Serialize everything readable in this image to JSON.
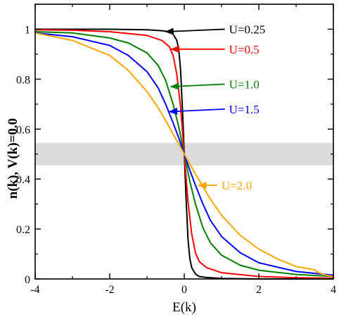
{
  "chart_data": {
    "type": "line",
    "title": "",
    "xlabel": "E(k)",
    "ylabel": "n(k),  V(k)=0.0",
    "xlim": [
      -4,
      4
    ],
    "ylim": [
      0,
      1.1
    ],
    "xticks": [
      -4,
      -2,
      0,
      2,
      4
    ],
    "xtick_labels": [
      "-4",
      "-2",
      "0",
      "2",
      "4"
    ],
    "yticks": [
      0,
      0.2,
      0.4,
      0.6,
      0.8,
      1
    ],
    "ytick_labels": [
      "0",
      "0.2",
      "0.4",
      "0.6",
      "0.8",
      "1"
    ],
    "grid": false,
    "shaded_band": {
      "y0": 0.455,
      "y1": 0.545,
      "color": "#dcdcdc"
    },
    "series": [
      {
        "name": "U=0.25",
        "color": "#000000",
        "x": [
          -4,
          -3,
          -2,
          -1,
          -0.6,
          -0.4,
          -0.3,
          -0.2,
          -0.15,
          -0.1,
          -0.05,
          0,
          0.05,
          0.1,
          0.15,
          0.2,
          0.3,
          0.4,
          0.6,
          1,
          2,
          3,
          4
        ],
        "y": [
          1.0,
          1.0,
          1.0,
          0.998,
          0.994,
          0.99,
          0.98,
          0.955,
          0.92,
          0.84,
          0.68,
          0.5,
          0.32,
          0.16,
          0.08,
          0.045,
          0.02,
          0.01,
          0.006,
          0.002,
          0.0,
          0.0,
          0.0
        ]
      },
      {
        "name": "U=0.5",
        "color": "#ff0000",
        "x": [
          -4,
          -3,
          -2,
          -1,
          -0.6,
          -0.4,
          -0.3,
          -0.2,
          -0.1,
          0,
          0.1,
          0.2,
          0.3,
          0.4,
          0.6,
          1,
          2,
          3,
          4
        ],
        "y": [
          0.998,
          0.996,
          0.99,
          0.975,
          0.955,
          0.93,
          0.895,
          0.82,
          0.69,
          0.5,
          0.31,
          0.18,
          0.105,
          0.07,
          0.045,
          0.025,
          0.01,
          0.005,
          0.003
        ]
      },
      {
        "name": "U=1.0",
        "color": "#008000",
        "x": [
          -4,
          -3,
          -2,
          -1.5,
          -1,
          -0.7,
          -0.5,
          -0.3,
          -0.15,
          0,
          0.15,
          0.3,
          0.5,
          0.7,
          1,
          1.5,
          2,
          3,
          4
        ],
        "y": [
          0.99,
          0.985,
          0.965,
          0.945,
          0.905,
          0.855,
          0.795,
          0.7,
          0.61,
          0.5,
          0.39,
          0.3,
          0.205,
          0.145,
          0.095,
          0.055,
          0.035,
          0.018,
          0.01
        ]
      },
      {
        "name": "U=1.5",
        "color": "#0000ff",
        "x": [
          -4,
          -3,
          -2,
          -1.5,
          -1,
          -0.7,
          -0.5,
          -0.3,
          -0.15,
          0,
          0.15,
          0.3,
          0.5,
          0.7,
          1,
          1.5,
          2,
          3,
          4
        ],
        "y": [
          0.985,
          0.97,
          0.935,
          0.895,
          0.83,
          0.765,
          0.7,
          0.625,
          0.565,
          0.5,
          0.435,
          0.375,
          0.3,
          0.235,
          0.17,
          0.105,
          0.065,
          0.03,
          0.015
        ]
      },
      {
        "name": "U=2.0",
        "color": "#ffa500",
        "x": [
          -4,
          -3,
          -2,
          -1.5,
          -1,
          -0.7,
          -0.5,
          -0.3,
          -0.15,
          0,
          0.15,
          0.3,
          0.5,
          0.7,
          1,
          1.5,
          2,
          2.5,
          3,
          3.3,
          3.5,
          3.6,
          3.8,
          4
        ],
        "y": [
          0.985,
          0.955,
          0.895,
          0.835,
          0.75,
          0.685,
          0.635,
          0.58,
          0.54,
          0.5,
          0.46,
          0.42,
          0.37,
          0.32,
          0.255,
          0.175,
          0.12,
          0.08,
          0.05,
          0.042,
          0.036,
          0.025,
          0.015,
          0.01
        ]
      }
    ],
    "annotations": [
      {
        "text": "U=0.25",
        "color": "#000000",
        "label_x": 1.2,
        "label_y": 1.0,
        "arrow_to_x": -0.5,
        "arrow_to_y": 0.99
      },
      {
        "text": "U=0.5",
        "color": "#ff0000",
        "label_x": 1.2,
        "label_y": 0.92,
        "arrow_to_x": -0.35,
        "arrow_to_y": 0.92
      },
      {
        "text": "U=1.0",
        "color": "#008000",
        "label_x": 1.2,
        "label_y": 0.78,
        "arrow_to_x": -0.36,
        "arrow_to_y": 0.77
      },
      {
        "text": "U=1.5",
        "color": "#0000ff",
        "label_x": 1.2,
        "label_y": 0.68,
        "arrow_to_x": -0.4,
        "arrow_to_y": 0.67
      },
      {
        "text": "U=2.0",
        "color": "#ffa500",
        "label_x": 1.0,
        "label_y": 0.375,
        "arrow_to_x": 0.38,
        "arrow_to_y": 0.375
      }
    ]
  }
}
